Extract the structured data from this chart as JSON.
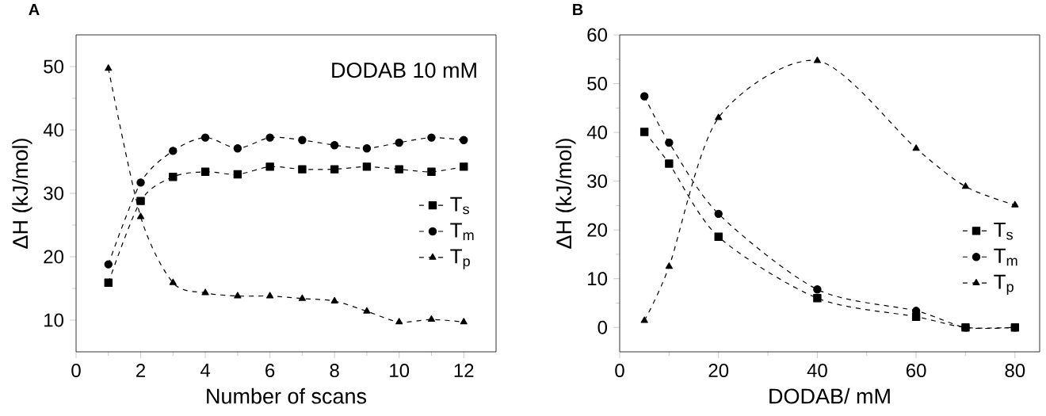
{
  "chart_data": [
    {
      "type": "line",
      "title": "A",
      "xlabel": "Number of scans",
      "ylabel": "ΔH (kJ/mol)",
      "annotations": [
        "DODAB 10 mM"
      ],
      "x": [
        1,
        2,
        3,
        4,
        5,
        6,
        7,
        8,
        9,
        10,
        11,
        12
      ],
      "xlim": [
        0,
        13
      ],
      "xticks": [
        0,
        2,
        4,
        6,
        8,
        10,
        12
      ],
      "ylim": [
        5,
        55
      ],
      "yticks": [
        10,
        20,
        30,
        40,
        50
      ],
      "legend": "right",
      "line_style": "dashed",
      "grid": false,
      "series": [
        {
          "name": "T$_{s}$",
          "color": "#000000",
          "marker": "square",
          "values": [
            15.9,
            28.8,
            32.6,
            33.4,
            33.0,
            34.2,
            33.8,
            33.8,
            34.2,
            33.8,
            33.4,
            34.2
          ]
        },
        {
          "name": "T$_{m}$",
          "color": "#000000",
          "marker": "circle",
          "values": [
            18.8,
            31.7,
            36.7,
            38.8,
            37.1,
            38.8,
            38.4,
            37.6,
            37.1,
            38.0,
            38.8,
            38.4
          ]
        },
        {
          "name": "T$_{p}$",
          "color": "#000000",
          "marker": "triangle",
          "values": [
            49.7,
            26.3,
            15.9,
            14.3,
            13.8,
            13.8,
            13.4,
            13.0,
            11.4,
            9.7,
            10.1,
            9.7
          ]
        }
      ]
    },
    {
      "type": "line",
      "title": "B",
      "xlabel": "DODAB/ mM",
      "ylabel": "ΔH (kJ/mol)",
      "x": [
        5,
        10,
        20,
        40,
        60,
        70,
        80
      ],
      "xlim": [
        0,
        85
      ],
      "xticks": [
        0,
        20,
        40,
        60,
        80
      ],
      "ylim": [
        -5,
        60
      ],
      "yticks": [
        0,
        10,
        20,
        30,
        40,
        50,
        60
      ],
      "legend": "bottom right",
      "line_style": "dashed",
      "grid": false,
      "series": [
        {
          "name": "T$_{s}$",
          "color": "#000000",
          "marker": "square",
          "values": [
            40.1,
            33.6,
            18.6,
            6.0,
            2.2,
            0,
            0
          ]
        },
        {
          "name": "T$_{m}$",
          "color": "#000000",
          "marker": "circle",
          "values": [
            47.4,
            37.9,
            23.3,
            7.8,
            3.4,
            0,
            0
          ]
        },
        {
          "name": "T$_{p}$",
          "color": "#000000",
          "marker": "triangle",
          "values": [
            1.4,
            12.5,
            43.0,
            54.7,
            36.7,
            28.9,
            25.1
          ]
        }
      ]
    }
  ]
}
